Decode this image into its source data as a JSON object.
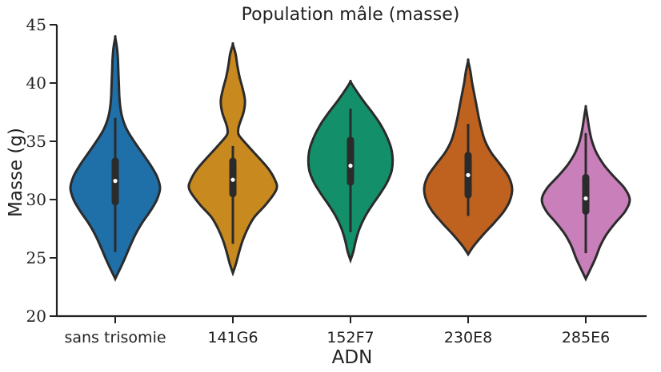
{
  "chart_data": {
    "type": "violin",
    "title": "Population mâle (masse)",
    "xlabel": "ADN",
    "ylabel": "Masse (g)",
    "ylim": [
      20,
      45
    ],
    "yticks": [
      20,
      25,
      30,
      35,
      40,
      45
    ],
    "grid": false,
    "categories": [
      "sans trisomie",
      "141G6",
      "152F7",
      "230E8",
      "285E6"
    ],
    "colors": [
      "#1f6fa8",
      "#c8891f",
      "#13906a",
      "#c0621f",
      "#c97fba"
    ],
    "series": [
      {
        "category": "sans trisomie",
        "min": 25.5,
        "q1": 29.8,
        "median": 31.6,
        "q3": 33.3,
        "max": 37.0,
        "kde_y": [
          23.2,
          24.0,
          25.0,
          26.0,
          27.0,
          28.0,
          29.0,
          30.0,
          31.0,
          32.0,
          33.0,
          34.0,
          35.0,
          36.0,
          37.0,
          38.0,
          39.0,
          40.0,
          41.0,
          42.0,
          43.0,
          43.9
        ],
        "kde_width": [
          0.0,
          0.1,
          0.22,
          0.33,
          0.45,
          0.6,
          0.78,
          0.93,
          1.0,
          0.93,
          0.78,
          0.6,
          0.42,
          0.26,
          0.16,
          0.11,
          0.09,
          0.08,
          0.07,
          0.06,
          0.04,
          0.0
        ]
      },
      {
        "category": "141G6",
        "min": 26.2,
        "q1": 30.5,
        "median": 31.7,
        "q3": 33.3,
        "max": 34.6,
        "kde_y": [
          23.7,
          24.5,
          25.5,
          26.5,
          27.5,
          28.5,
          29.5,
          30.5,
          31.0,
          31.5,
          32.5,
          33.5,
          34.5,
          35.5,
          36.0,
          36.5,
          37.5,
          38.5,
          39.5,
          40.5,
          41.5,
          42.5,
          43.3
        ],
        "kde_width": [
          0.0,
          0.07,
          0.14,
          0.22,
          0.33,
          0.48,
          0.72,
          0.92,
          0.98,
          0.96,
          0.82,
          0.6,
          0.36,
          0.14,
          0.12,
          0.15,
          0.24,
          0.27,
          0.22,
          0.15,
          0.1,
          0.06,
          0.0
        ]
      },
      {
        "category": "152F7",
        "min": 27.2,
        "q1": 31.5,
        "median": 32.9,
        "q3": 35.1,
        "max": 37.8,
        "kde_y": [
          24.8,
          25.5,
          26.5,
          27.5,
          28.5,
          29.5,
          30.5,
          31.5,
          32.5,
          33.5,
          34.5,
          35.5,
          36.5,
          37.5,
          38.5,
          39.5,
          40.1
        ],
        "kde_width": [
          0.0,
          0.06,
          0.12,
          0.2,
          0.32,
          0.48,
          0.66,
          0.82,
          0.92,
          0.94,
          0.9,
          0.8,
          0.66,
          0.48,
          0.28,
          0.1,
          0.0
        ]
      },
      {
        "category": "230E8",
        "min": 28.6,
        "q1": 30.4,
        "median": 32.1,
        "q3": 33.8,
        "max": 36.5,
        "kde_y": [
          25.3,
          26.0,
          27.0,
          28.0,
          29.0,
          30.0,
          31.0,
          32.0,
          33.0,
          34.0,
          35.0,
          36.0,
          37.0,
          38.0,
          39.0,
          40.0,
          41.0,
          41.9
        ],
        "kde_width": [
          0.0,
          0.12,
          0.34,
          0.58,
          0.8,
          0.94,
          0.98,
          0.9,
          0.72,
          0.52,
          0.38,
          0.3,
          0.24,
          0.19,
          0.14,
          0.09,
          0.05,
          0.0
        ]
      },
      {
        "category": "285E6",
        "min": 25.4,
        "q1": 29.0,
        "median": 30.1,
        "q3": 31.9,
        "max": 35.7,
        "kde_y": [
          23.2,
          24.0,
          25.0,
          26.0,
          27.0,
          28.0,
          29.0,
          30.0,
          31.0,
          32.0,
          33.0,
          34.0,
          35.0,
          36.0,
          37.0,
          37.9
        ],
        "kde_width": [
          0.0,
          0.1,
          0.22,
          0.32,
          0.46,
          0.66,
          0.88,
          0.98,
          0.86,
          0.62,
          0.4,
          0.24,
          0.14,
          0.08,
          0.04,
          0.0
        ]
      }
    ]
  }
}
